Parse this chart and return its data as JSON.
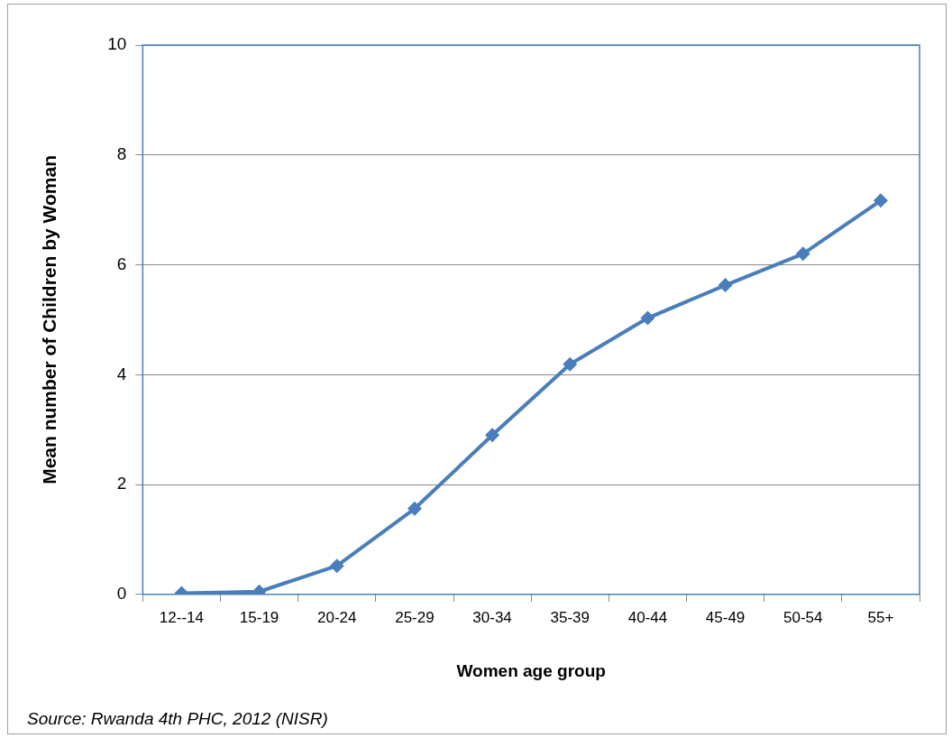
{
  "chart_data": {
    "type": "line",
    "xlabel": "Women age group",
    "ylabel": "Mean number of Children by Woman",
    "categories": [
      "12--14",
      "15-19",
      "20-24",
      "25-29",
      "30-34",
      "35-39",
      "40-44",
      "45-49",
      "50-54",
      "55+"
    ],
    "series": [
      {
        "color": "#4a7ebb",
        "values": [
          0.02,
          0.05,
          0.52,
          1.56,
          2.9,
          4.19,
          5.03,
          5.63,
          6.2,
          7.17
        ]
      }
    ],
    "ylim": [
      0,
      10
    ],
    "yticks": [
      0,
      2,
      4,
      6,
      8,
      10
    ],
    "grid": "y",
    "legend": false,
    "marker": "diamond",
    "line_style": "solid",
    "annotations": [
      "Source:  Rwanda 4th PHC, 2012 (NISR)"
    ]
  }
}
